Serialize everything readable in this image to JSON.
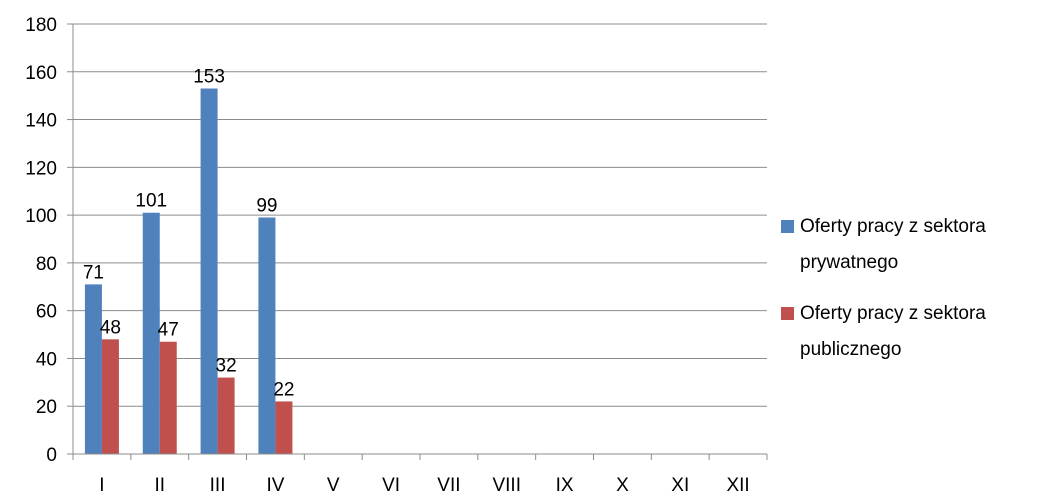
{
  "chart_data": {
    "type": "bar",
    "categories": [
      "I",
      "II",
      "III",
      "IV",
      "V",
      "VI",
      "VII",
      "VIII",
      "IX",
      "X",
      "XI",
      "XII"
    ],
    "series": [
      {
        "name": "Oferty pracy z sektora prywatnego",
        "name_lines": [
          "Oferty pracy z sektora",
          "prywatnego"
        ],
        "color": "#4F81BD",
        "values": [
          71,
          101,
          153,
          99,
          null,
          null,
          null,
          null,
          null,
          null,
          null,
          null
        ]
      },
      {
        "name": "Oferty pracy z sektora publicznego",
        "name_lines": [
          "Oferty pracy z sektora",
          "publicznego"
        ],
        "color": "#C0504D",
        "values": [
          48,
          47,
          32,
          22,
          null,
          null,
          null,
          null,
          null,
          null,
          null,
          null
        ]
      }
    ],
    "ylim": [
      0,
      180
    ],
    "yticks": [
      0,
      20,
      40,
      60,
      80,
      100,
      120,
      140,
      160,
      180
    ],
    "grid": true,
    "legend": "right",
    "data_labels": true
  }
}
